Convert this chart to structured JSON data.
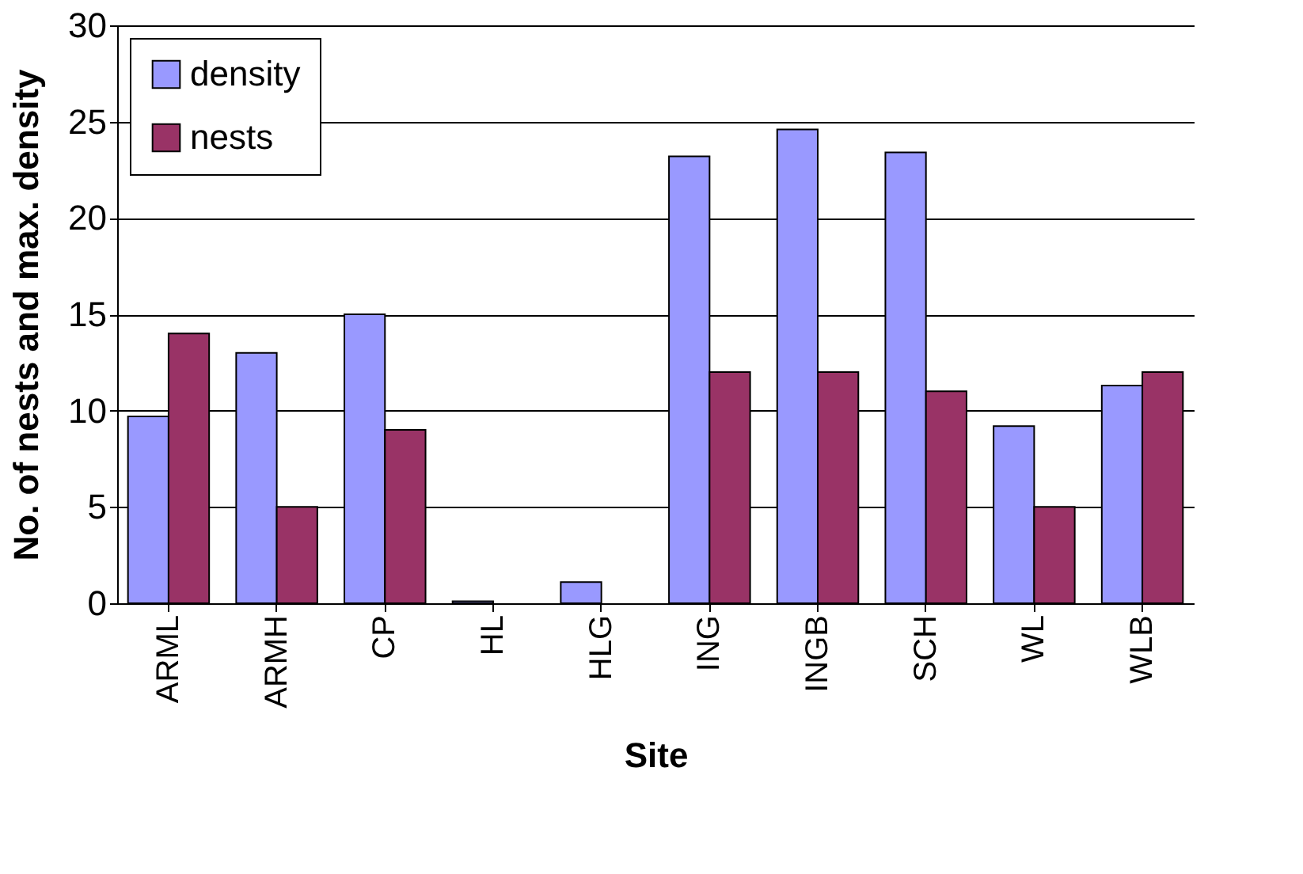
{
  "chart_data": {
    "type": "bar",
    "xlabel": "Site",
    "ylabel": "No. of nests and max. density",
    "categories": [
      "ARML",
      "ARMH",
      "CP",
      "HL",
      "HLG",
      "ING",
      "INGB",
      "SCH",
      "WL",
      "WLB"
    ],
    "series": [
      {
        "name": "density",
        "color": "#9999ff",
        "values": [
          9.7,
          13,
          15,
          0.1,
          1.1,
          23.2,
          24.6,
          23.4,
          9.2,
          11.3
        ]
      },
      {
        "name": "nests",
        "color": "#993366",
        "values": [
          14,
          5,
          9,
          0,
          0,
          12,
          12,
          11,
          5,
          12
        ]
      }
    ],
    "ylim": [
      0,
      30
    ],
    "yticks": [
      0,
      5,
      10,
      15,
      20,
      25,
      30
    ],
    "grid": "y",
    "legend": "top left"
  }
}
